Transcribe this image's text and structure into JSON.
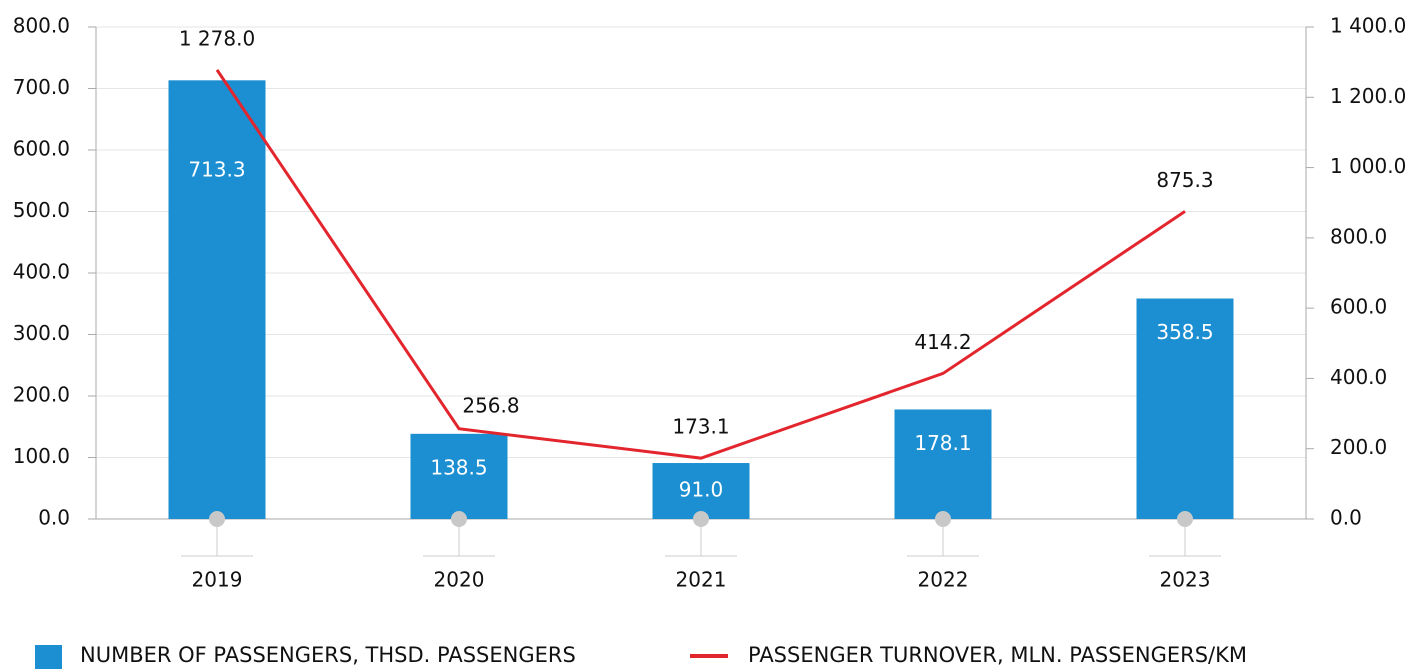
{
  "chart_data": {
    "type": "bar",
    "categories": [
      "2019",
      "2020",
      "2021",
      "2022",
      "2023"
    ],
    "series": [
      {
        "name": "NUMBER OF PASSENGERS, THSD. PASSENGERS",
        "type": "bar",
        "color": "#1b8fd2",
        "values": [
          713.3,
          138.5,
          91.0,
          178.1,
          358.5
        ],
        "value_labels": [
          "713.3",
          "138.5",
          "91.0",
          "178.1",
          "358.5"
        ]
      },
      {
        "name": "PASSENGER TURNOVER, MLN. PASSENGERS/KM",
        "type": "line",
        "axis": "y2",
        "color": "#e3262e",
        "values": [
          1278.0,
          256.8,
          173.1,
          414.2,
          875.3
        ],
        "value_labels": [
          "1 278.0",
          "256.8",
          "173.1",
          "414.2",
          "875.3"
        ]
      }
    ],
    "ylim": [
      0,
      800
    ],
    "yticks": [
      {
        "value": 0,
        "label": "0.0"
      },
      {
        "value": 100,
        "label": "100.0"
      },
      {
        "value": 200,
        "label": "200.0"
      },
      {
        "value": 300,
        "label": "300.0"
      },
      {
        "value": 400,
        "label": "400.0"
      },
      {
        "value": 500,
        "label": "500.0"
      },
      {
        "value": 600,
        "label": "600.0"
      },
      {
        "value": 700,
        "label": "700.0"
      },
      {
        "value": 800,
        "label": "800.0"
      }
    ],
    "y2lim": [
      0,
      1400
    ],
    "y2ticks": [
      {
        "value": 0,
        "label": "0.0"
      },
      {
        "value": 200,
        "label": "200.0"
      },
      {
        "value": 400,
        "label": "400.0"
      },
      {
        "value": 600,
        "label": "600.0"
      },
      {
        "value": 800,
        "label": "800.0"
      },
      {
        "value": 1000,
        "label": "1 000.0"
      },
      {
        "value": 1200,
        "label": "1 200.0"
      },
      {
        "value": 1400,
        "label": "1 400.0"
      }
    ],
    "grid": true,
    "legend": "bottom"
  }
}
